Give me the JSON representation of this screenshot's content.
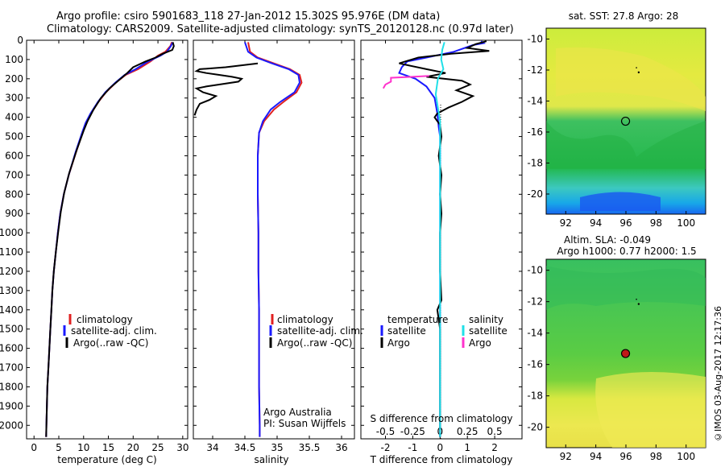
{
  "header": {
    "title1": "Argo profile: csiro 5901683_118 27-Jan-2012 15.302S 95.976E (DM data)",
    "title2": "Climatology: CARS2009. Satellite-adjusted climatology: synTS_20120128.nc (0.97d later)"
  },
  "watermark": "©IMOS 03-Aug-2017 12:17:36",
  "colors": {
    "red": "#e02020",
    "blue": "#1a1aff",
    "black": "#000000",
    "cyan": "#20e0e8",
    "magenta": "#ff33cc"
  },
  "chart_data": [
    {
      "type": "line",
      "name": "temperature-profile",
      "xlabel": "temperature (deg C)",
      "ylabel": "",
      "xlim": [
        -1.5,
        31
      ],
      "ylim": [
        2070,
        0
      ],
      "xticks": [
        0,
        5,
        10,
        15,
        20,
        25,
        30
      ],
      "yticks": [
        0,
        100,
        200,
        300,
        400,
        500,
        600,
        700,
        800,
        900,
        1000,
        1100,
        1200,
        1300,
        1400,
        1500,
        1600,
        1700,
        1800,
        1900,
        2000
      ],
      "legend": [
        "climatology",
        "satellite-adj. clim.",
        "Argo(..raw -QC)"
      ],
      "series": [
        {
          "name": "climatology",
          "color": "red",
          "points": [
            [
              27.8,
              10
            ],
            [
              27.5,
              30
            ],
            [
              26.5,
              60
            ],
            [
              25,
              80
            ],
            [
              23.5,
              110
            ],
            [
              21,
              150
            ],
            [
              18.5,
              180
            ],
            [
              16.5,
              220
            ],
            [
              14.5,
              270
            ],
            [
              13,
              320
            ],
            [
              11.5,
              380
            ],
            [
              10.5,
              430
            ],
            [
              9.8,
              480
            ],
            [
              8.5,
              580
            ],
            [
              7,
              700
            ],
            [
              6,
              800
            ],
            [
              5.3,
              900
            ],
            [
              4.8,
              1000
            ],
            [
              4.4,
              1100
            ],
            [
              4,
              1200
            ],
            [
              3.7,
              1300
            ],
            [
              3.5,
              1400
            ],
            [
              3.3,
              1500
            ],
            [
              3.1,
              1600
            ],
            [
              2.9,
              1700
            ],
            [
              2.7,
              1800
            ],
            [
              2.6,
              1900
            ],
            [
              2.5,
              2000
            ],
            [
              2.45,
              2060
            ]
          ]
        },
        {
          "name": "satellite-adj. clim.",
          "color": "blue",
          "points": [
            [
              28,
              10
            ],
            [
              27.6,
              30
            ],
            [
              26.8,
              60
            ],
            [
              25.5,
              80
            ],
            [
              23,
              110
            ],
            [
              20.5,
              150
            ],
            [
              18.3,
              180
            ],
            [
              16.4,
              220
            ],
            [
              14.4,
              270
            ],
            [
              12.9,
              320
            ],
            [
              11.4,
              380
            ],
            [
              10.4,
              430
            ],
            [
              9.7,
              480
            ],
            [
              8.4,
              580
            ],
            [
              7,
              700
            ],
            [
              6,
              800
            ],
            [
              5.3,
              900
            ],
            [
              4.8,
              1000
            ],
            [
              4.4,
              1100
            ],
            [
              4,
              1200
            ],
            [
              3.7,
              1300
            ],
            [
              3.5,
              1400
            ],
            [
              3.3,
              1500
            ],
            [
              3.1,
              1600
            ],
            [
              2.9,
              1700
            ],
            [
              2.7,
              1800
            ],
            [
              2.6,
              1900
            ],
            [
              2.5,
              2000
            ],
            [
              2.45,
              2060
            ]
          ]
        },
        {
          "name": "Argo(..raw -QC)",
          "color": "black",
          "points": [
            [
              28,
              10
            ],
            [
              28.2,
              30
            ],
            [
              27.9,
              50
            ],
            [
              26,
              70
            ],
            [
              24.5,
              90
            ],
            [
              22.5,
              110
            ],
            [
              20,
              140
            ],
            [
              18.8,
              170
            ],
            [
              17,
              210
            ],
            [
              15.2,
              250
            ],
            [
              13.5,
              300
            ],
            [
              12,
              360
            ],
            [
              10.8,
              420
            ],
            [
              10,
              470
            ],
            [
              8.6,
              570
            ],
            [
              7.1,
              690
            ],
            [
              6.1,
              790
            ],
            [
              5.4,
              890
            ],
            [
              4.9,
              990
            ],
            [
              4.4,
              1100
            ],
            [
              4,
              1200
            ],
            [
              3.7,
              1300
            ],
            [
              3.5,
              1400
            ],
            [
              3.3,
              1500
            ],
            [
              3.1,
              1600
            ],
            [
              2.9,
              1700
            ],
            [
              2.7,
              1800
            ],
            [
              2.6,
              1900
            ],
            [
              2.5,
              2000
            ],
            [
              2.45,
              2060
            ]
          ]
        }
      ]
    },
    {
      "type": "line",
      "name": "salinity-profile",
      "xlabel": "salinity",
      "ylabel": "",
      "xlim": [
        33.7,
        36.2
      ],
      "ylim": [
        2070,
        0
      ],
      "xticks": [
        34,
        34.5,
        35,
        35.5,
        36
      ],
      "xticklabels": [
        "34",
        "34.5",
        "35",
        "35.5",
        "36"
      ],
      "legend": [
        "climatology",
        "satellite-adj. clim.",
        "Argo(..raw -QC)"
      ],
      "annotation": [
        "Argo Australia",
        "PI: Susan Wijffels"
      ],
      "series": [
        {
          "name": "climatology",
          "color": "red",
          "points": [
            [
              34.55,
              10
            ],
            [
              34.58,
              60
            ],
            [
              34.7,
              90
            ],
            [
              34.95,
              120
            ],
            [
              35.2,
              150
            ],
            [
              35.35,
              180
            ],
            [
              35.38,
              220
            ],
            [
              35.3,
              270
            ],
            [
              35.1,
              320
            ],
            [
              34.95,
              360
            ],
            [
              34.8,
              420
            ],
            [
              34.72,
              480
            ],
            [
              34.7,
              600
            ],
            [
              34.7,
              800
            ],
            [
              34.71,
              1000
            ],
            [
              34.71,
              1200
            ],
            [
              34.72,
              1400
            ],
            [
              34.72,
              1600
            ],
            [
              34.72,
              1800
            ],
            [
              34.73,
              2000
            ],
            [
              34.73,
              2060
            ]
          ]
        },
        {
          "name": "satellite-adj. clim.",
          "color": "blue",
          "points": [
            [
              34.5,
              10
            ],
            [
              34.55,
              60
            ],
            [
              34.68,
              90
            ],
            [
              34.92,
              120
            ],
            [
              35.18,
              150
            ],
            [
              35.33,
              180
            ],
            [
              35.35,
              220
            ],
            [
              35.27,
              270
            ],
            [
              35.05,
              320
            ],
            [
              34.9,
              360
            ],
            [
              34.78,
              420
            ],
            [
              34.72,
              480
            ],
            [
              34.7,
              600
            ],
            [
              34.7,
              800
            ],
            [
              34.71,
              1000
            ],
            [
              34.71,
              1200
            ],
            [
              34.72,
              1400
            ],
            [
              34.72,
              1600
            ],
            [
              34.72,
              1800
            ],
            [
              34.73,
              2000
            ],
            [
              34.73,
              2060
            ]
          ]
        },
        {
          "name": "Argo(..raw -QC)",
          "color": "black",
          "points": [
            [
              34.7,
              120
            ],
            [
              34.2,
              140
            ],
            [
              33.8,
              150
            ],
            [
              33.75,
              160
            ],
            [
              33.9,
              170
            ],
            [
              34.1,
              180
            ],
            [
              34.3,
              190
            ],
            [
              34.45,
              200
            ],
            [
              34.4,
              215
            ],
            [
              34.1,
              230
            ],
            [
              33.9,
              240
            ],
            [
              33.75,
              250
            ],
            [
              33.85,
              270
            ],
            [
              34.05,
              290
            ],
            [
              33.95,
              310
            ],
            [
              33.8,
              330
            ],
            [
              33.75,
              360
            ],
            [
              33.72,
              390
            ]
          ]
        }
      ]
    },
    {
      "type": "line",
      "name": "difference-profile",
      "xlabel": "T difference from climatology",
      "x2label": "S difference from climatology",
      "xlim": [
        -2.9,
        3
      ],
      "ylim": [
        2070,
        0
      ],
      "xticks": [
        -2,
        -1,
        0,
        1,
        2
      ],
      "xticklabels": [
        "-2",
        "-1",
        "0",
        "1",
        "2"
      ],
      "x2ticks": [
        -0.5,
        -0.25,
        0,
        0.25,
        0.5
      ],
      "x2ticklabels": [
        "-0.5",
        "-0.25",
        "0",
        "0.25",
        "0.5"
      ],
      "legend_temperature": {
        "heading": "temperature",
        "items": [
          "satellite",
          "Argo"
        ]
      },
      "legend_salinity": {
        "heading": "salinity",
        "items": [
          "satellite",
          "Argo"
        ]
      },
      "series": [
        {
          "name": "temperature satellite",
          "color": "blue",
          "points": [
            [
              1.5,
              5
            ],
            [
              1.6,
              15
            ],
            [
              1.2,
              25
            ],
            [
              0.5,
              60
            ],
            [
              -0.5,
              90
            ],
            [
              -1.2,
              110
            ],
            [
              -1.4,
              140
            ],
            [
              -1.5,
              170
            ],
            [
              -0.9,
              200
            ],
            [
              -0.5,
              240
            ],
            [
              -0.2,
              300
            ],
            [
              -0.1,
              380
            ],
            [
              -0.05,
              450
            ],
            [
              0,
              500
            ],
            [
              0,
              700
            ],
            [
              0,
              1000
            ],
            [
              0,
              1400
            ],
            [
              0,
              1800
            ],
            [
              0,
              2060
            ]
          ]
        },
        {
          "name": "temperature Argo",
          "color": "black",
          "points": [
            [
              1.7,
              5
            ],
            [
              1.3,
              20
            ],
            [
              1,
              40
            ],
            [
              1.8,
              55
            ],
            [
              0.4,
              70
            ],
            [
              -0.8,
              90
            ],
            [
              -1.5,
              120
            ],
            [
              -0.5,
              150
            ],
            [
              0.2,
              170
            ],
            [
              -0.5,
              190
            ],
            [
              0.8,
              210
            ],
            [
              1.1,
              230
            ],
            [
              0.6,
              260
            ],
            [
              1.2,
              290
            ],
            [
              0.8,
              320
            ],
            [
              0.3,
              350
            ],
            [
              -0.1,
              380
            ],
            [
              -0.2,
              400
            ],
            [
              0,
              440
            ],
            [
              0.05,
              500
            ],
            [
              -0.05,
              600
            ],
            [
              0.05,
              700
            ],
            [
              0,
              800
            ],
            [
              0.05,
              900
            ],
            [
              0,
              1000
            ],
            [
              0,
              1200
            ],
            [
              0.05,
              1350
            ],
            [
              -0.1,
              1400
            ],
            [
              0,
              1500
            ],
            [
              0,
              2060
            ]
          ]
        },
        {
          "name": "salinity satellite",
          "color": "cyan",
          "points": [
            [
              0.04,
              10
            ],
            [
              0.02,
              50
            ],
            [
              0.01,
              100
            ],
            [
              0.03,
              150
            ],
            [
              -0.02,
              200
            ],
            [
              -0.04,
              280
            ],
            [
              -0.02,
              350
            ],
            [
              0,
              420
            ],
            [
              0,
              600
            ],
            [
              0,
              800
            ],
            [
              0,
              1000
            ],
            [
              0,
              1400
            ],
            [
              0,
              1800
            ],
            [
              0,
              2060
            ]
          ]
        },
        {
          "name": "salinity Argo",
          "color": "magenta",
          "points": [
            [
              -0.1,
              185
            ],
            [
              -0.25,
              190
            ],
            [
              -0.45,
              195
            ],
            [
              -0.45,
              215
            ],
            [
              -0.5,
              230
            ],
            [
              -0.52,
              250
            ]
          ]
        }
      ]
    },
    {
      "type": "heatmap",
      "name": "sst-map",
      "title": "sat. SST: 27.8 Argo: 28",
      "xlim": [
        90.7,
        101.3
      ],
      "ylim": [
        -21.3,
        -9.3
      ],
      "xticks": [
        92,
        94,
        96,
        98,
        100
      ],
      "yticks": [
        -10,
        -12,
        -14,
        -16,
        -18,
        -20
      ],
      "float_position": [
        95.976,
        -15.302
      ]
    },
    {
      "type": "heatmap",
      "name": "sla-map",
      "title": "Altim. SLA: -0.049",
      "subtitle": "Argo h1000: 0.77 h2000: 1.5",
      "xlim": [
        90.7,
        101.3
      ],
      "ylim": [
        -21.3,
        -9.3
      ],
      "xticks": [
        92,
        94,
        96,
        98,
        100
      ],
      "yticks": [
        -10,
        -12,
        -14,
        -16,
        -18,
        -20
      ],
      "float_position": [
        95.976,
        -15.302
      ]
    }
  ]
}
